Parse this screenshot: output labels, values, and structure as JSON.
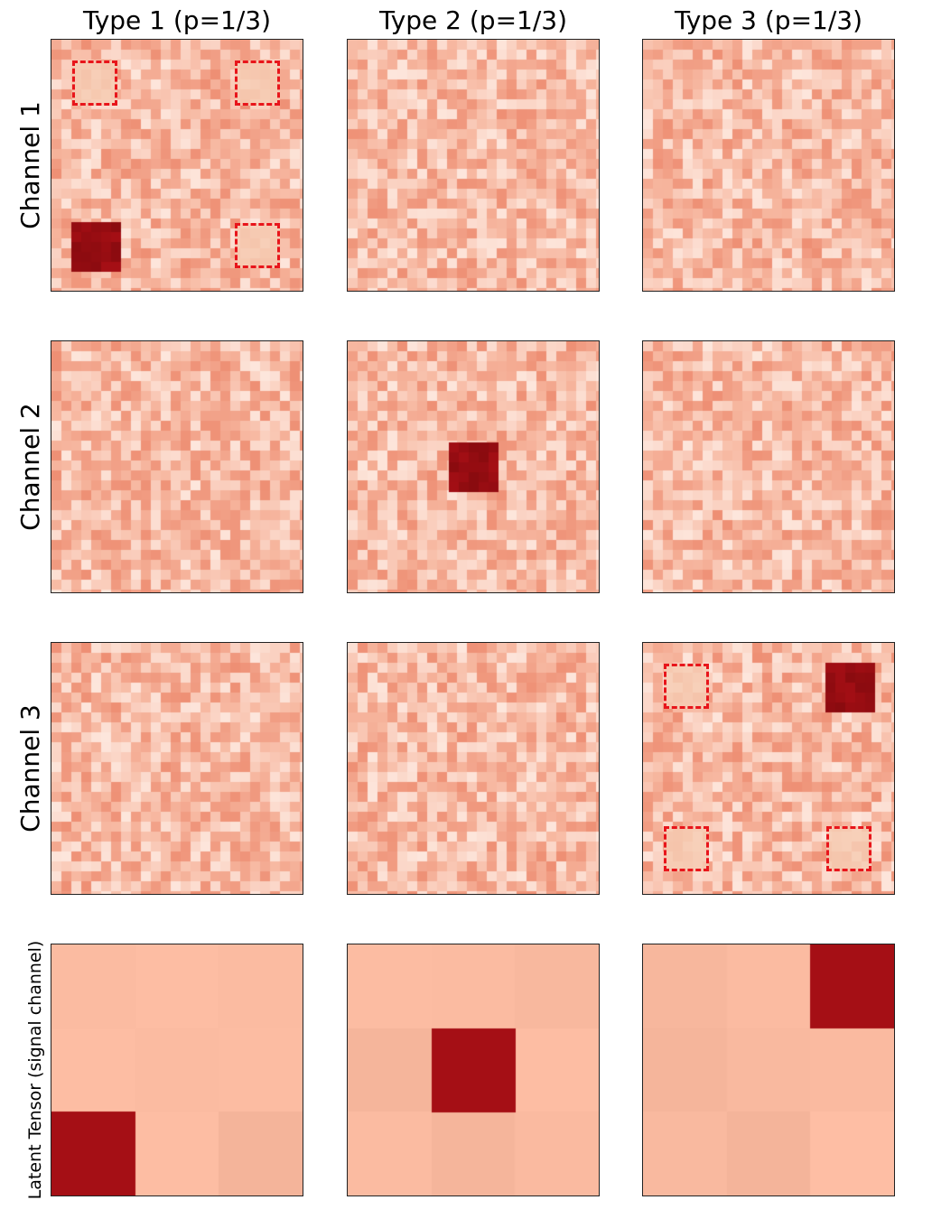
{
  "columns": [
    {
      "title": "Type 1 (p=1/3)"
    },
    {
      "title": "Type 2 (p=1/3)"
    },
    {
      "title": "Type 3 (p=1/3)"
    }
  ],
  "rows": [
    {
      "label": "Channel 1"
    },
    {
      "label": "Channel 2"
    },
    {
      "label": "Channel 3"
    },
    {
      "label": "Latent Tensor (signal channel)"
    }
  ],
  "colors": {
    "noise_light": "#fde6dc",
    "noise_mid": "#f7b9a2",
    "noise_dark": "#ee8f74",
    "signal": "#a50f15",
    "latent_bg": "#f9b99f",
    "dashed_outline": "#e8151b"
  },
  "panels": [
    [
      {
        "signal": {
          "row": 2,
          "col": 0
        },
        "dashed": [
          {
            "row": 0,
            "col": 0
          },
          {
            "row": 0,
            "col": 2
          },
          {
            "row": 2,
            "col": 2
          }
        ]
      },
      {
        "signal": null,
        "dashed": []
      },
      {
        "signal": null,
        "dashed": []
      }
    ],
    [
      {
        "signal": null,
        "dashed": []
      },
      {
        "signal": {
          "row": 1,
          "col": 1
        },
        "dashed": []
      },
      {
        "signal": null,
        "dashed": []
      }
    ],
    [
      {
        "signal": null,
        "dashed": []
      },
      {
        "signal": null,
        "dashed": []
      },
      {
        "signal": {
          "row": 0,
          "col": 2
        },
        "dashed": [
          {
            "row": 0,
            "col": 0
          },
          {
            "row": 2,
            "col": 0
          },
          {
            "row": 2,
            "col": 2
          }
        ]
      }
    ]
  ],
  "latent": [
    {
      "signal": {
        "row": 2,
        "col": 0
      }
    },
    {
      "signal": {
        "row": 1,
        "col": 1
      }
    },
    {
      "signal": {
        "row": 0,
        "col": 2
      }
    }
  ]
}
